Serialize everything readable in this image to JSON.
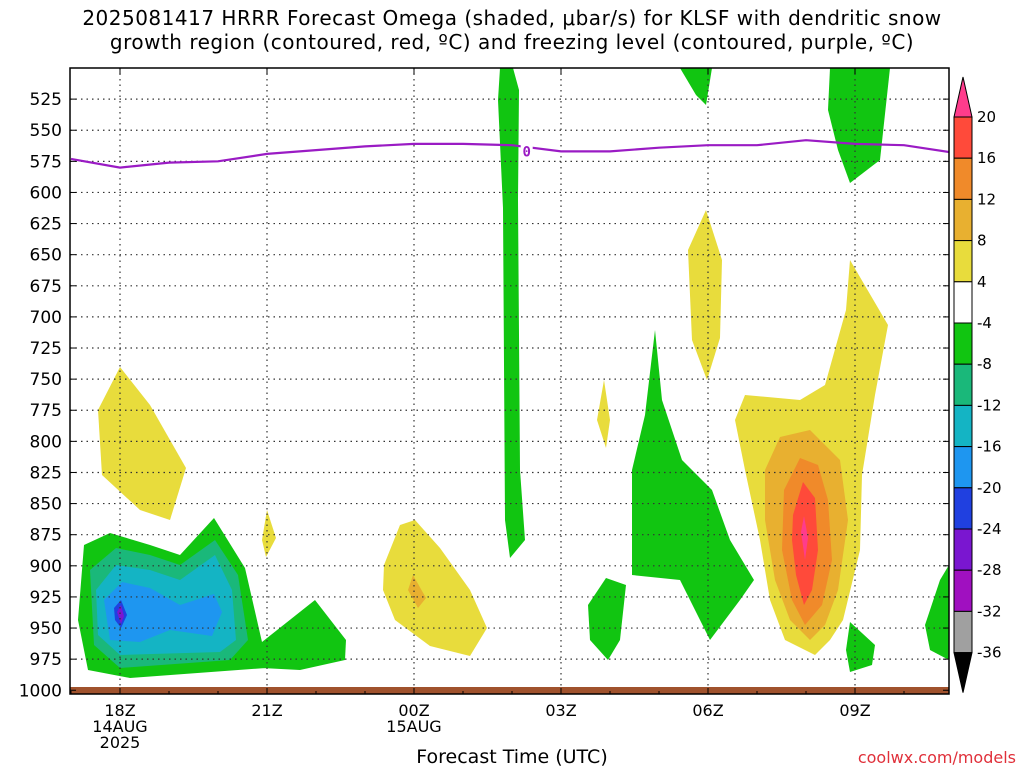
{
  "title_line1": "2025081417 HRRR Forecast Omega (shaded, μbar/s) for KLSF with dendritic snow",
  "title_line2": "growth region (contoured, red, ºC) and freezing level (contoured, purple, ºC)",
  "credit": "coolwx.com/models",
  "chart_data": {
    "type": "contour",
    "title": "2025081417 HRRR Forecast Omega (shaded, μbar/s) for KLSF with dendritic snow growth region (contoured, red, ºC) and freezing level (contoured, purple, ºC)",
    "xlabel": "Forecast Time (UTC)",
    "ylabel": "",
    "y_ticks": [
      525,
      550,
      575,
      600,
      625,
      650,
      675,
      700,
      725,
      750,
      775,
      800,
      825,
      850,
      875,
      900,
      925,
      950,
      975,
      1000
    ],
    "x_ticks": [
      {
        "hour": 18,
        "lines": [
          "18Z",
          "14AUG",
          "2025"
        ]
      },
      {
        "hour": 21,
        "lines": [
          "21Z"
        ]
      },
      {
        "hour": 24,
        "lines": [
          "00Z",
          "15AUG"
        ]
      },
      {
        "hour": 27,
        "lines": [
          "03Z"
        ]
      },
      {
        "hour": 30,
        "lines": [
          "06Z"
        ]
      },
      {
        "hour": 33,
        "lines": [
          "09Z"
        ]
      }
    ],
    "x_range_hours": [
      17,
      35
    ],
    "colorbar": {
      "levels": [
        "20",
        "16",
        "12",
        "8",
        "4",
        "-4",
        "-8",
        "-12",
        "-16",
        "-20",
        "-24",
        "-28",
        "-32",
        "-36"
      ],
      "colors": [
        "#ff3c8c",
        "#ff4a3a",
        "#f08a2a",
        "#e8b030",
        "#e8dc3c",
        "#ffffff",
        "#11c511",
        "#1ab87a",
        "#14b4c4",
        "#1e96f0",
        "#2040e0",
        "#7a16d0",
        "#a010c0",
        "#a0a0a0",
        "#000000"
      ]
    },
    "freezing_level": {
      "label": "0",
      "color": "#9a1bc4",
      "points": [
        [
          17,
          573
        ],
        [
          18,
          580
        ],
        [
          19,
          576
        ],
        [
          20,
          575
        ],
        [
          21,
          569
        ],
        [
          22,
          566
        ],
        [
          23,
          563
        ],
        [
          24,
          561
        ],
        [
          25,
          561
        ],
        [
          26,
          562
        ],
        [
          27,
          567
        ],
        [
          28,
          567
        ],
        [
          29,
          564
        ],
        [
          30,
          562
        ],
        [
          31,
          562
        ],
        [
          32,
          558
        ],
        [
          33,
          561
        ],
        [
          34,
          562
        ],
        [
          35,
          568
        ]
      ]
    },
    "ground_color": "#a0522d"
  }
}
